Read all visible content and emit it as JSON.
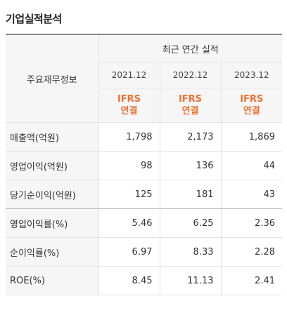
{
  "title": "기업실적분석",
  "header": {
    "label_column": "주요재무정보",
    "period_group": "최근 연간 실적",
    "years": [
      "2021.12",
      "2022.12",
      "2023.12"
    ],
    "basis_line1": "IFRS",
    "basis_line2": "연결"
  },
  "rows": [
    {
      "label": "매출액(억원)",
      "values": [
        "1,798",
        "2,173",
        "1,869"
      ]
    },
    {
      "label": "영업이익(억원)",
      "values": [
        "98",
        "136",
        "44"
      ]
    },
    {
      "label": "당기순이익(억원)",
      "values": [
        "125",
        "181",
        "43"
      ]
    },
    {
      "label": "영업이익률(%)",
      "values": [
        "5.46",
        "6.25",
        "2.36"
      ]
    },
    {
      "label": "순이익률(%)",
      "values": [
        "6.97",
        "8.33",
        "2.28"
      ]
    },
    {
      "label": "ROE(%)",
      "values": [
        "8.45",
        "11.13",
        "2.41"
      ]
    }
  ],
  "colors": {
    "accent": "#f07030",
    "header_bg": "#f6f6f6"
  }
}
